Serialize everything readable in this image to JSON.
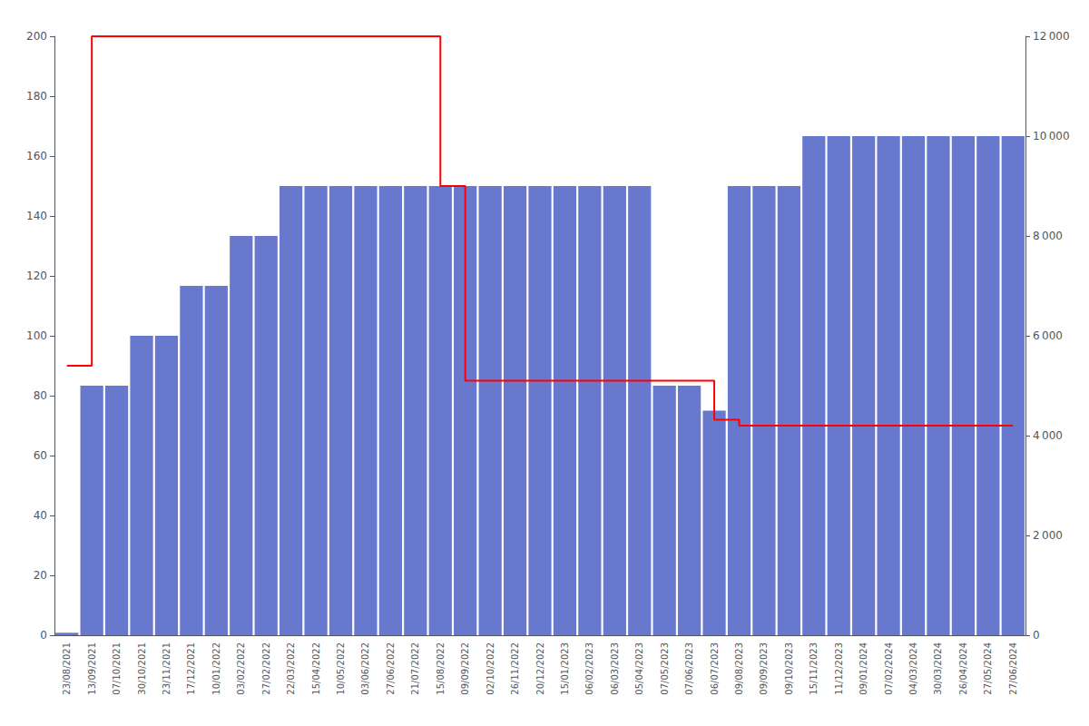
{
  "chart_data": {
    "type": "combo",
    "categories": [
      "23/08/2021",
      "13/09/2021",
      "07/10/2021",
      "30/10/2021",
      "23/11/2021",
      "17/12/2021",
      "10/01/2022",
      "03/02/2022",
      "27/02/2022",
      "22/03/2022",
      "15/04/2022",
      "10/05/2022",
      "03/06/2022",
      "27/06/2022",
      "21/07/2022",
      "15/08/2022",
      "09/09/2022",
      "02/10/2022",
      "26/11/2022",
      "20/12/2022",
      "15/01/2023",
      "06/02/2023",
      "06/03/2023",
      "05/04/2023",
      "07/05/2023",
      "07/06/2023",
      "06/07/2023",
      "09/08/2023",
      "09/09/2023",
      "09/10/2023",
      "15/11/2023",
      "11/12/2023",
      "09/01/2024",
      "07/02/2024",
      "04/03/2024",
      "30/03/2024",
      "26/04/2024",
      "27/05/2024",
      "27/06/2024"
    ],
    "series": [
      {
        "type": "bar",
        "axis": "y2",
        "color": "#6878cc",
        "values": [
          50,
          5000,
          5000,
          6000,
          6000,
          7000,
          7000,
          8000,
          8000,
          9000,
          9000,
          9000,
          9000,
          9000,
          9000,
          9000,
          9000,
          9000,
          9000,
          9000,
          9000,
          9000,
          9000,
          9000,
          5000,
          5000,
          4500,
          9000,
          9000,
          9000,
          10000,
          10000,
          10000,
          10000,
          10000,
          10000,
          10000,
          10000,
          10000
        ]
      },
      {
        "type": "line",
        "line_style": "step",
        "color": "#ff0000",
        "values": [
          90,
          200,
          200,
          200,
          200,
          200,
          200,
          200,
          200,
          200,
          200,
          200,
          200,
          200,
          200,
          150,
          85,
          85,
          85,
          85,
          85,
          85,
          85,
          85,
          85,
          85,
          72,
          70,
          70,
          70,
          70,
          70,
          70,
          70,
          70,
          70,
          70,
          70,
          70
        ]
      }
    ],
    "ylim": [
      0,
      200
    ],
    "yticks": [
      0,
      20,
      40,
      60,
      80,
      100,
      120,
      140,
      160,
      180,
      200
    ],
    "y2lim": [
      0,
      12000
    ],
    "y2ticks": [
      0,
      {
        "value": 2000,
        "label": "2 000"
      },
      {
        "value": 4000,
        "label": "4 000"
      },
      {
        "value": 6000,
        "label": "6 000"
      },
      {
        "value": 8000,
        "label": "8 000"
      },
      {
        "value": 10000,
        "label": "10 000"
      },
      {
        "value": 12000,
        "label": "12 000"
      }
    ],
    "grid": false
  }
}
